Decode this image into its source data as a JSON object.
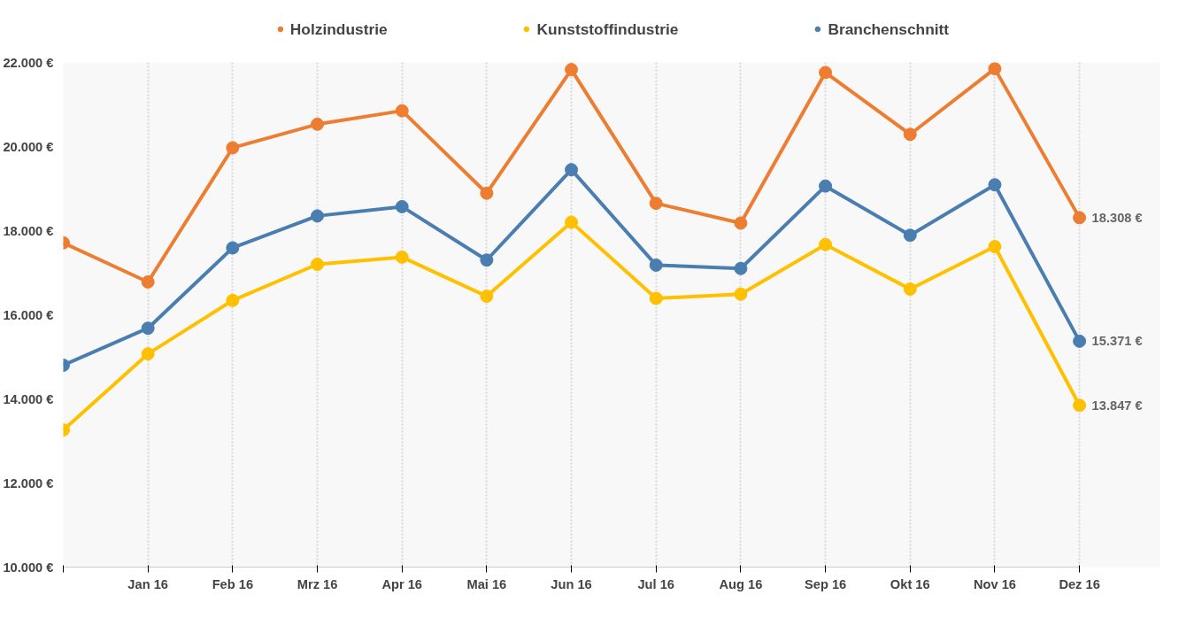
{
  "chart_data": {
    "type": "line",
    "categories": [
      null,
      "Jan 16",
      "Feb 16",
      "Mrz 16",
      "Apr 16",
      "Mai 16",
      "Jun 16",
      "Jul 16",
      "Aug 16",
      "Sep 16",
      "Okt 16",
      "Nov 16",
      "Dez 16"
    ],
    "series": [
      {
        "name": "Holzindustrie",
        "color": "#ed7d31",
        "values": [
          17710,
          16780,
          19970,
          20530,
          20850,
          18890,
          21830,
          18650,
          18180,
          21760,
          20290,
          21850,
          18308
        ],
        "value_labels": [
          null,
          null,
          null,
          null,
          null,
          null,
          null,
          null,
          null,
          null,
          null,
          null,
          "18.308 €"
        ]
      },
      {
        "name": "Kunststoffindustrie",
        "color": "#ffc000",
        "values": [
          13260,
          15070,
          16340,
          17200,
          17370,
          16440,
          18200,
          16390,
          16490,
          17670,
          16610,
          17620,
          13847
        ],
        "value_labels": [
          null,
          null,
          null,
          null,
          null,
          null,
          null,
          null,
          null,
          null,
          null,
          null,
          "13.847 €"
        ]
      },
      {
        "name": "Branchenschnitt",
        "color": "#4a7eb0",
        "values": [
          14800,
          15680,
          17590,
          18350,
          18570,
          17300,
          19450,
          17180,
          17100,
          19060,
          17890,
          19090,
          15371
        ],
        "value_labels": [
          null,
          null,
          null,
          null,
          null,
          null,
          null,
          null,
          null,
          null,
          null,
          null,
          "15.371 €"
        ]
      }
    ],
    "ylim": [
      10000,
      22000
    ],
    "yticks": [
      {
        "value": 10000,
        "label": "10.000 €"
      },
      {
        "value": 12000,
        "label": "12.000 €"
      },
      {
        "value": 14000,
        "label": "14.000 €"
      },
      {
        "value": 16000,
        "label": "16.000 €"
      },
      {
        "value": 18000,
        "label": "18.000 €"
      },
      {
        "value": 20000,
        "label": "20.000 €"
      },
      {
        "value": 22000,
        "label": "22.000 €"
      }
    ],
    "grid": "x",
    "legend": "top",
    "marker": "circle",
    "line_style": "solid"
  }
}
